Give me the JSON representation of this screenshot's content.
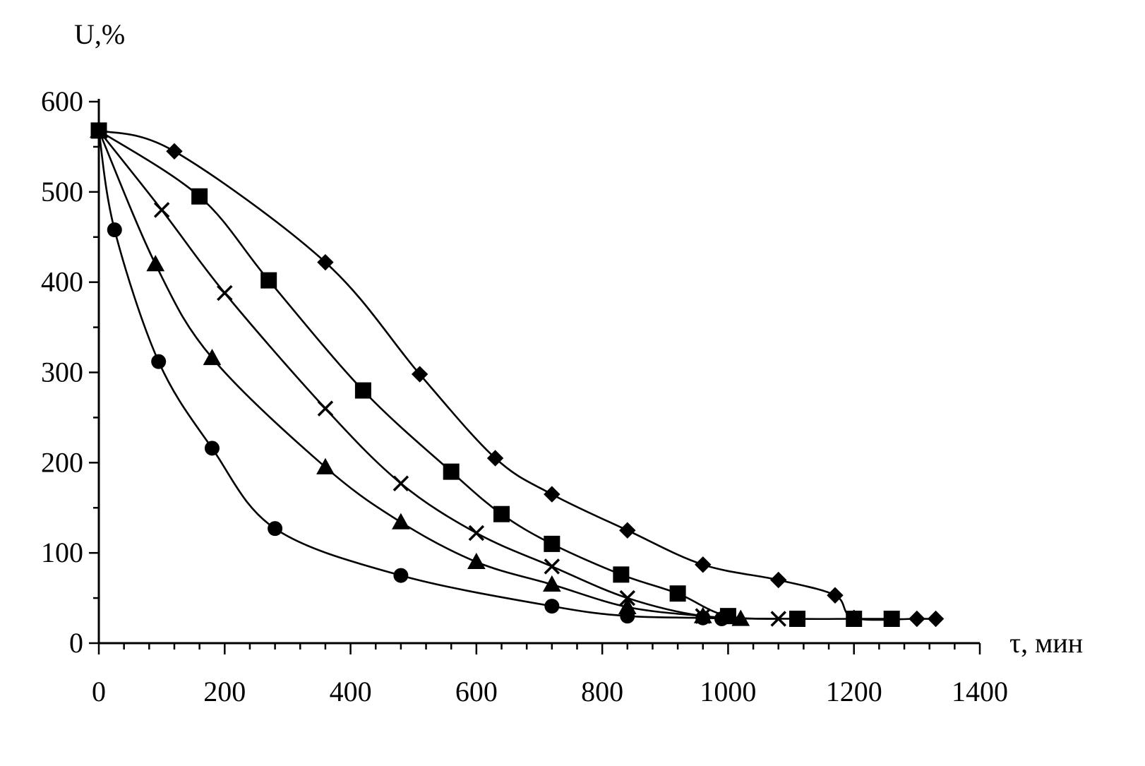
{
  "chart_data": {
    "type": "line",
    "title": "",
    "xlabel": "τ, мин",
    "ylabel": "U,%",
    "xlim": [
      0,
      1400
    ],
    "ylim": [
      0,
      600
    ],
    "x_ticks": [
      0,
      200,
      400,
      600,
      800,
      1000,
      1200,
      1400
    ],
    "y_ticks": [
      0,
      100,
      200,
      300,
      400,
      500,
      600
    ],
    "grid": false,
    "legend": "none",
    "series": [
      {
        "marker": "diamond",
        "x": [
          0,
          120,
          360,
          510,
          630,
          720,
          840,
          960,
          1080,
          1170,
          1200,
          1300,
          1330
        ],
        "y": [
          568,
          545,
          422,
          298,
          205,
          165,
          125,
          87,
          70,
          53,
          28,
          27,
          27
        ]
      },
      {
        "marker": "square",
        "x": [
          0,
          160,
          270,
          420,
          560,
          640,
          720,
          830,
          920,
          1000,
          1110,
          1200,
          1260
        ],
        "y": [
          568,
          495,
          402,
          280,
          190,
          143,
          110,
          76,
          55,
          30,
          27,
          27,
          27
        ]
      },
      {
        "marker": "x",
        "x": [
          0,
          100,
          200,
          360,
          480,
          600,
          720,
          840,
          960,
          1080
        ],
        "y": [
          568,
          480,
          388,
          260,
          177,
          122,
          85,
          50,
          30,
          27
        ]
      },
      {
        "marker": "triangle",
        "x": [
          0,
          90,
          180,
          360,
          480,
          600,
          720,
          840,
          960,
          1020
        ],
        "y": [
          568,
          420,
          316,
          195,
          134,
          90,
          65,
          40,
          30,
          27
        ]
      },
      {
        "marker": "circle",
        "x": [
          0,
          25,
          95,
          180,
          280,
          480,
          720,
          840,
          960,
          990
        ],
        "y": [
          568,
          458,
          312,
          216,
          127,
          75,
          41,
          30,
          28,
          27
        ]
      }
    ]
  }
}
